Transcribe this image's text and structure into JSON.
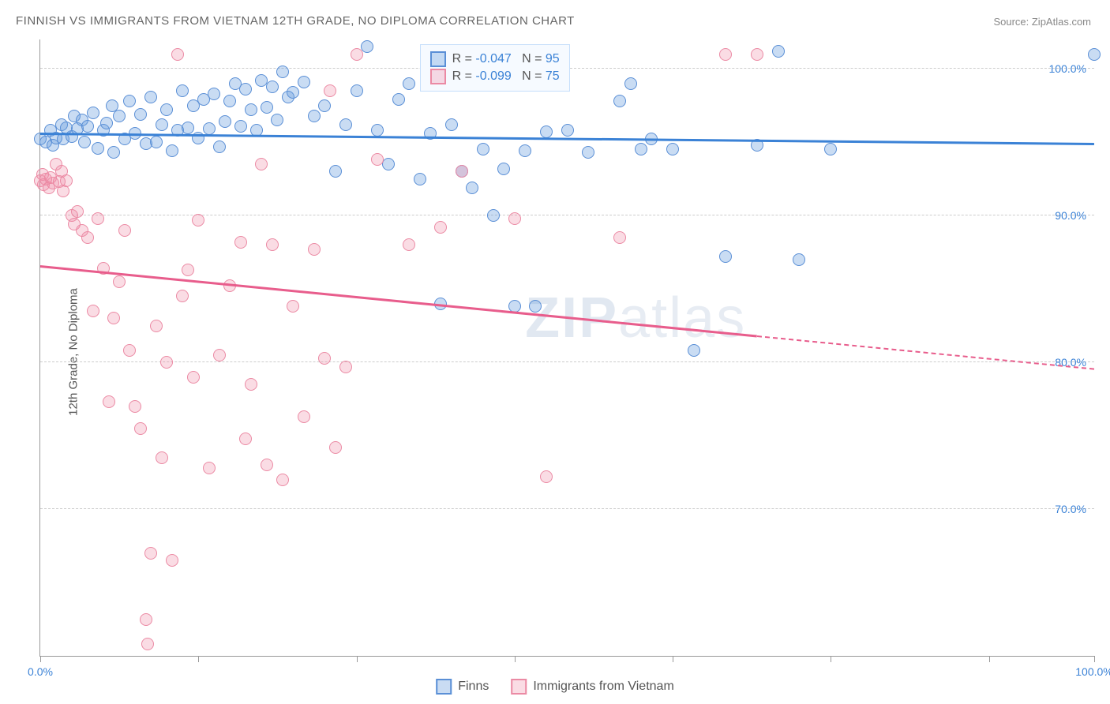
{
  "title": "FINNISH VS IMMIGRANTS FROM VIETNAM 12TH GRADE, NO DIPLOMA CORRELATION CHART",
  "source": "Source: ZipAtlas.com",
  "ylabel": "12th Grade, No Diploma",
  "watermark_a": "ZIP",
  "watermark_b": "atlas",
  "chart": {
    "type": "scatter",
    "xlim": [
      0,
      100
    ],
    "ylim": [
      60,
      102
    ],
    "x_ticks": [
      0,
      15,
      30,
      45,
      60,
      75,
      90,
      100
    ],
    "x_tick_labels": {
      "0": "0.0%",
      "100": "100.0%"
    },
    "y_gridlines": [
      70,
      80,
      90,
      100
    ],
    "y_tick_labels": {
      "70": "70.0%",
      "80": "80.0%",
      "90": "90.0%",
      "100": "100.0%"
    },
    "x_label_color": "#3b82d6",
    "y_label_color": "#3b82d6",
    "grid_color": "#cccccc",
    "background_color": "#ffffff",
    "series": [
      {
        "name": "Finns",
        "color_fill": "rgba(99,155,222,0.35)",
        "color_stroke": "#5a8fd6",
        "marker_size": 16,
        "r": -0.047,
        "n": 95,
        "trend": {
          "x1": 0,
          "y1": 95.5,
          "x2": 100,
          "y2": 94.8,
          "solid_until": 100,
          "color": "#3b82d6"
        },
        "points": [
          [
            0,
            95.2
          ],
          [
            0.5,
            95
          ],
          [
            1,
            95.8
          ],
          [
            1.2,
            94.8
          ],
          [
            1.5,
            95.3
          ],
          [
            2,
            96.2
          ],
          [
            2.2,
            95.2
          ],
          [
            2.5,
            96
          ],
          [
            3,
            95.4
          ],
          [
            3.2,
            96.8
          ],
          [
            3.5,
            95.9
          ],
          [
            4,
            96.5
          ],
          [
            4.2,
            95
          ],
          [
            4.5,
            96.1
          ],
          [
            5,
            97
          ],
          [
            5.5,
            94.6
          ],
          [
            6,
            95.8
          ],
          [
            6.3,
            96.3
          ],
          [
            6.8,
            97.5
          ],
          [
            7,
            94.3
          ],
          [
            7.5,
            96.8
          ],
          [
            8,
            95.2
          ],
          [
            8.5,
            97.8
          ],
          [
            9,
            95.6
          ],
          [
            9.5,
            96.9
          ],
          [
            10,
            94.9
          ],
          [
            10.5,
            98.1
          ],
          [
            11,
            95
          ],
          [
            11.5,
            96.2
          ],
          [
            12,
            97.2
          ],
          [
            12.5,
            94.4
          ],
          [
            13,
            95.8
          ],
          [
            13.5,
            98.5
          ],
          [
            14,
            96
          ],
          [
            14.5,
            97.5
          ],
          [
            15,
            95.3
          ],
          [
            15.5,
            97.9
          ],
          [
            16,
            95.9
          ],
          [
            16.5,
            98.3
          ],
          [
            17,
            94.7
          ],
          [
            17.5,
            96.4
          ],
          [
            18,
            97.8
          ],
          [
            18.5,
            99
          ],
          [
            19,
            96.1
          ],
          [
            19.5,
            98.6
          ],
          [
            20,
            97.2
          ],
          [
            20.5,
            95.8
          ],
          [
            21,
            99.2
          ],
          [
            21.5,
            97.4
          ],
          [
            22,
            98.8
          ],
          [
            22.5,
            96.5
          ],
          [
            23,
            99.8
          ],
          [
            23.5,
            98.1
          ],
          [
            24,
            98.4
          ],
          [
            25,
            99.1
          ],
          [
            26,
            96.8
          ],
          [
            27,
            97.5
          ],
          [
            28,
            93
          ],
          [
            29,
            96.2
          ],
          [
            30,
            98.5
          ],
          [
            31,
            101.5
          ],
          [
            32,
            95.8
          ],
          [
            33,
            93.5
          ],
          [
            34,
            97.9
          ],
          [
            35,
            99
          ],
          [
            36,
            92.5
          ],
          [
            37,
            95.6
          ],
          [
            38,
            84
          ],
          [
            39,
            96.2
          ],
          [
            40,
            93
          ],
          [
            41,
            91.9
          ],
          [
            42,
            94.5
          ],
          [
            43,
            90
          ],
          [
            44,
            93.2
          ],
          [
            45,
            83.8
          ],
          [
            46,
            94.4
          ],
          [
            47,
            83.8
          ],
          [
            48,
            95.7
          ],
          [
            50,
            95.8
          ],
          [
            52,
            94.3
          ],
          [
            55,
            97.8
          ],
          [
            56,
            99
          ],
          [
            57,
            94.5
          ],
          [
            58,
            95.2
          ],
          [
            60,
            94.5
          ],
          [
            62,
            80.8
          ],
          [
            65,
            87.2
          ],
          [
            68,
            94.8
          ],
          [
            70,
            101.2
          ],
          [
            72,
            87
          ],
          [
            75,
            94.5
          ],
          [
            100,
            101
          ]
        ]
      },
      {
        "name": "Immigrants from Vietnam",
        "color_fill": "rgba(240,140,165,0.30)",
        "color_stroke": "#eb8aa4",
        "marker_size": 16,
        "r": -0.099,
        "n": 75,
        "trend": {
          "x1": 0,
          "y1": 86.5,
          "x2": 100,
          "y2": 79.5,
          "solid_until": 68,
          "color": "#e85d8c"
        },
        "points": [
          [
            0,
            92.4
          ],
          [
            0.2,
            92.8
          ],
          [
            0.3,
            92.1
          ],
          [
            0.5,
            92.5
          ],
          [
            0.8,
            91.9
          ],
          [
            1,
            92.6
          ],
          [
            1.2,
            92.2
          ],
          [
            1.5,
            93.5
          ],
          [
            1.8,
            92.3
          ],
          [
            2,
            93
          ],
          [
            2.2,
            91.7
          ],
          [
            2.5,
            92.4
          ],
          [
            3,
            90
          ],
          [
            3.2,
            89.4
          ],
          [
            3.5,
            90.3
          ],
          [
            4,
            89
          ],
          [
            4.5,
            88.5
          ],
          [
            5,
            83.5
          ],
          [
            5.5,
            89.8
          ],
          [
            6,
            86.4
          ],
          [
            6.5,
            77.3
          ],
          [
            7,
            83
          ],
          [
            7.5,
            85.5
          ],
          [
            8,
            89
          ],
          [
            8.5,
            80.8
          ],
          [
            9,
            77
          ],
          [
            9.5,
            75.5
          ],
          [
            10,
            62.5
          ],
          [
            10.2,
            60.8
          ],
          [
            10.5,
            67
          ],
          [
            11,
            82.5
          ],
          [
            11.5,
            73.5
          ],
          [
            12,
            80
          ],
          [
            12.5,
            66.5
          ],
          [
            13,
            101
          ],
          [
            13.5,
            84.5
          ],
          [
            14,
            86.3
          ],
          [
            14.5,
            79
          ],
          [
            15,
            89.7
          ],
          [
            16,
            72.8
          ],
          [
            17,
            80.5
          ],
          [
            18,
            85.2
          ],
          [
            19,
            88.2
          ],
          [
            19.5,
            74.8
          ],
          [
            20,
            78.5
          ],
          [
            21,
            93.5
          ],
          [
            21.5,
            73
          ],
          [
            22,
            88
          ],
          [
            23,
            72
          ],
          [
            24,
            83.8
          ],
          [
            25,
            76.3
          ],
          [
            26,
            87.7
          ],
          [
            27,
            80.3
          ],
          [
            27.5,
            98.5
          ],
          [
            28,
            74.2
          ],
          [
            29,
            79.7
          ],
          [
            30,
            101
          ],
          [
            32,
            93.8
          ],
          [
            35,
            88
          ],
          [
            38,
            89.2
          ],
          [
            40,
            93
          ],
          [
            45,
            89.8
          ],
          [
            48,
            72.2
          ],
          [
            55,
            88.5
          ],
          [
            65,
            101
          ],
          [
            68,
            101
          ]
        ]
      }
    ]
  },
  "legend_box": {
    "r_label": "R =",
    "n_label": "N =",
    "value_color": "#3b82d6"
  }
}
